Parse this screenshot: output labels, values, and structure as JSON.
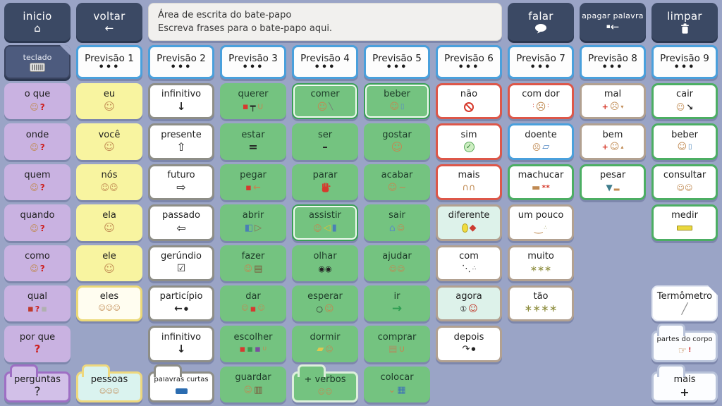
{
  "toolbar": {
    "inicio": {
      "label": "inicio",
      "icon": "home-icon"
    },
    "voltar": {
      "label": "voltar",
      "icon": "back-arrow-icon"
    },
    "chat_area": {
      "title": "Área de escrita do bate-papo",
      "placeholder": "Escreva frases para o bate-papo aqui."
    },
    "falar": {
      "label": "falar",
      "icon": "speech-bubble-icon"
    },
    "apagar_palavra": {
      "label": "apagar palavra",
      "icon": "backspace-icon"
    },
    "limpar": {
      "label": "limpar",
      "icon": "trash-icon"
    }
  },
  "prediction_row": {
    "teclado": {
      "label": "teclado",
      "icon": "keyboard-icon"
    },
    "items": [
      {
        "label": "Previsão 1",
        "more": "•••"
      },
      {
        "label": "Previsão 2",
        "more": "•••"
      },
      {
        "label": "Previsão 3",
        "more": "•••"
      },
      {
        "label": "Previsão 4",
        "more": "•••"
      },
      {
        "label": "Previsão 5",
        "more": "•••"
      },
      {
        "label": "Previsão 6",
        "more": "•••"
      },
      {
        "label": "Previsão 7",
        "more": "•••"
      },
      {
        "label": "Previsão 8",
        "more": "•••"
      },
      {
        "label": "Previsão 9",
        "more": "•••"
      }
    ]
  },
  "grid": {
    "columns": 10,
    "rows": 8,
    "cells": [
      {
        "col": 1,
        "row": 1,
        "label": "o que",
        "style": "purple",
        "icon": "person-question-icon"
      },
      {
        "col": 1,
        "row": 2,
        "label": "onde",
        "style": "purple",
        "icon": "person-question-icon"
      },
      {
        "col": 1,
        "row": 3,
        "label": "quem",
        "style": "purple",
        "icon": "person-question-icon"
      },
      {
        "col": 1,
        "row": 4,
        "label": "quando",
        "style": "purple",
        "icon": "person-question-icon"
      },
      {
        "col": 1,
        "row": 5,
        "label": "como",
        "style": "purple",
        "icon": "person-question-icon"
      },
      {
        "col": 1,
        "row": 6,
        "label": "qual",
        "style": "purple",
        "icon": "boxes-question-icon"
      },
      {
        "col": 1,
        "row": 7,
        "label": "por que",
        "style": "purple",
        "icon": "question-red-icon"
      },
      {
        "col": 1,
        "row": 8,
        "label": "perguntas",
        "style": "folder-purple",
        "icon": "question-icon"
      },
      {
        "col": 2,
        "row": 1,
        "label": "eu",
        "style": "yellow",
        "icon": "person-icon"
      },
      {
        "col": 2,
        "row": 2,
        "label": "você",
        "style": "yellow",
        "icon": "person-icon"
      },
      {
        "col": 2,
        "row": 3,
        "label": "nós",
        "style": "yellow",
        "icon": "two-people-icon"
      },
      {
        "col": 2,
        "row": 4,
        "label": "ela",
        "style": "yellow",
        "icon": "person-icon"
      },
      {
        "col": 2,
        "row": 5,
        "label": "ele",
        "style": "yellow",
        "icon": "person-icon"
      },
      {
        "col": 2,
        "row": 6,
        "label": "eles",
        "style": "yellow-outline",
        "icon": "three-people-icon"
      },
      {
        "col": 2,
        "row": 8,
        "label": "pessoas",
        "style": "folder-cyan",
        "icon": "people-group-icon"
      },
      {
        "col": 3,
        "row": 1,
        "label": "infinitivo",
        "style": "white-gray",
        "icon": "arrow-down-icon"
      },
      {
        "col": 3,
        "row": 2,
        "label": "presente",
        "style": "white-gray",
        "icon": "arrow-up-outline-icon"
      },
      {
        "col": 3,
        "row": 3,
        "label": "futuro",
        "style": "white-gray",
        "icon": "arrow-right-outline-icon"
      },
      {
        "col": 3,
        "row": 4,
        "label": "passado",
        "style": "white-gray",
        "icon": "arrow-left-outline-icon"
      },
      {
        "col": 3,
        "row": 5,
        "label": "gerúndio",
        "style": "white-gray",
        "icon": "checkbox-icon"
      },
      {
        "col": 3,
        "row": 6,
        "label": "particípio",
        "style": "white-gray",
        "icon": "arrow-left-dot-icon"
      },
      {
        "col": 3,
        "row": 7,
        "label": "infinitivo",
        "style": "white-gray",
        "icon": "arrow-down-icon"
      },
      {
        "col": 3,
        "row": 8,
        "label": "palavras curtas",
        "style": "folder-gray",
        "icon": "blue-rect-icon"
      },
      {
        "col": 4,
        "row": 1,
        "label": "querer",
        "style": "green",
        "icon": "want-icon"
      },
      {
        "col": 4,
        "row": 2,
        "label": "estar",
        "style": "green",
        "icon": "equals-icon"
      },
      {
        "col": 4,
        "row": 3,
        "label": "pegar",
        "style": "green",
        "icon": "grab-icon"
      },
      {
        "col": 4,
        "row": 4,
        "label": "abrir",
        "style": "green",
        "icon": "open-icon"
      },
      {
        "col": 4,
        "row": 5,
        "label": "fazer",
        "style": "green",
        "icon": "make-icon"
      },
      {
        "col": 4,
        "row": 6,
        "label": "dar",
        "style": "green",
        "icon": "give-icon"
      },
      {
        "col": 4,
        "row": 7,
        "label": "escolher",
        "style": "green",
        "icon": "choose-icon"
      },
      {
        "col": 4,
        "row": 8,
        "label": "guardar",
        "style": "green",
        "icon": "store-icon"
      },
      {
        "col": 5,
        "row": 1,
        "label": "comer",
        "style": "green-hl",
        "icon": "eat-icon"
      },
      {
        "col": 5,
        "row": 2,
        "label": "ser",
        "style": "green",
        "icon": "dash-icon"
      },
      {
        "col": 5,
        "row": 3,
        "label": "parar",
        "style": "green",
        "icon": "stop-hand-icon"
      },
      {
        "col": 5,
        "row": 4,
        "label": "assistir",
        "style": "green-hl",
        "icon": "watch-icon"
      },
      {
        "col": 5,
        "row": 5,
        "label": "olhar",
        "style": "green",
        "icon": "eyes-icon"
      },
      {
        "col": 5,
        "row": 6,
        "label": "esperar",
        "style": "green",
        "icon": "wait-icon"
      },
      {
        "col": 5,
        "row": 7,
        "label": "dormir",
        "style": "green",
        "icon": "sleep-icon"
      },
      {
        "col": 5,
        "row": 8,
        "label": "+ verbos",
        "style": "folder-green",
        "icon": "verbs-icon"
      },
      {
        "col": 6,
        "row": 1,
        "label": "beber",
        "style": "green-hl",
        "icon": "drink-icon"
      },
      {
        "col": 6,
        "row": 2,
        "label": "gostar",
        "style": "green",
        "icon": "like-icon"
      },
      {
        "col": 6,
        "row": 3,
        "label": "acabar",
        "style": "green",
        "icon": "finish-icon"
      },
      {
        "col": 6,
        "row": 4,
        "label": "sair",
        "style": "green",
        "icon": "leave-icon"
      },
      {
        "col": 6,
        "row": 5,
        "label": "ajudar",
        "style": "green",
        "icon": "help-icon"
      },
      {
        "col": 6,
        "row": 6,
        "label": "ir",
        "style": "green",
        "icon": "green-arrow-icon"
      },
      {
        "col": 6,
        "row": 7,
        "label": "comprar",
        "style": "green",
        "icon": "buy-icon"
      },
      {
        "col": 6,
        "row": 8,
        "label": "colocar",
        "style": "green",
        "icon": "put-icon"
      },
      {
        "col": 7,
        "row": 1,
        "label": "não",
        "style": "red",
        "icon": "no-entry-icon"
      },
      {
        "col": 7,
        "row": 2,
        "label": "sim",
        "style": "red",
        "icon": "check-circle-icon"
      },
      {
        "col": 7,
        "row": 3,
        "label": "mais",
        "style": "red",
        "icon": "more-hands-icon"
      },
      {
        "col": 7,
        "row": 4,
        "label": "diferente",
        "style": "tan-mint",
        "icon": "different-icon"
      },
      {
        "col": 7,
        "row": 5,
        "label": "com",
        "style": "tan",
        "icon": "with-icon"
      },
      {
        "col": 7,
        "row": 6,
        "label": "agora",
        "style": "tan-mint",
        "icon": "now-icon"
      },
      {
        "col": 7,
        "row": 7,
        "label": "depois",
        "style": "tan",
        "icon": "after-icon"
      },
      {
        "col": 8,
        "row": 1,
        "label": "com dor",
        "style": "red",
        "icon": "pain-icon"
      },
      {
        "col": 8,
        "row": 2,
        "label": "doente",
        "style": "blue",
        "icon": "sick-icon"
      },
      {
        "col": 8,
        "row": 3,
        "label": "machucar",
        "style": "green-outline",
        "icon": "hurt-icon"
      },
      {
        "col": 8,
        "row": 4,
        "label": "um pouco",
        "style": "tan",
        "icon": "little-icon"
      },
      {
        "col": 8,
        "row": 5,
        "label": "muito",
        "style": "tan",
        "icon": "much-icon"
      },
      {
        "col": 8,
        "row": 6,
        "label": "tão",
        "style": "tan",
        "icon": "so-much-icon"
      },
      {
        "col": 9,
        "row": 1,
        "label": "mal",
        "style": "tan",
        "icon": "bad-icon"
      },
      {
        "col": 9,
        "row": 2,
        "label": "bem",
        "style": "tan",
        "icon": "well-icon"
      },
      {
        "col": 9,
        "row": 3,
        "label": "pesar",
        "style": "green-outline",
        "icon": "weigh-icon"
      },
      {
        "col": 10,
        "row": 1,
        "label": "cair",
        "style": "green-outline",
        "icon": "fall-icon"
      },
      {
        "col": 10,
        "row": 2,
        "label": "beber",
        "style": "green-outline",
        "icon": "drink-icon"
      },
      {
        "col": 10,
        "row": 3,
        "label": "consultar",
        "style": "green-outline",
        "icon": "consult-icon"
      },
      {
        "col": 10,
        "row": 4,
        "label": "medir",
        "style": "green-outline",
        "icon": "measure-icon"
      },
      {
        "col": 10,
        "row": 6,
        "label": "Termômetro",
        "style": "white-dogear",
        "icon": "thermometer-icon"
      },
      {
        "col": 10,
        "row": 7,
        "label": "partes do corpo",
        "style": "folder-light",
        "icon": "body-point-icon"
      },
      {
        "col": 10,
        "row": 8,
        "label": "mais",
        "style": "folder-light",
        "icon": "plus-icon"
      }
    ]
  },
  "colors": {
    "background": "#9aa4c6",
    "toolbar_button": "#3b4964",
    "purple": "#c9b2e1",
    "yellow": "#f8f4a0",
    "green": "#74c380",
    "green_hl_border": "#3aa057",
    "green_outline_border": "#4cae63",
    "blue_border": "#4aa0dc",
    "red_border": "#dd5749",
    "tan_border": "#b2a191",
    "gray_border": "#8e8e87",
    "mint": "#ddf2ea",
    "cyan": "#daf3ef",
    "folder_purple_border": "#9e6fc4",
    "folder_yellow_border": "#eed87e"
  }
}
